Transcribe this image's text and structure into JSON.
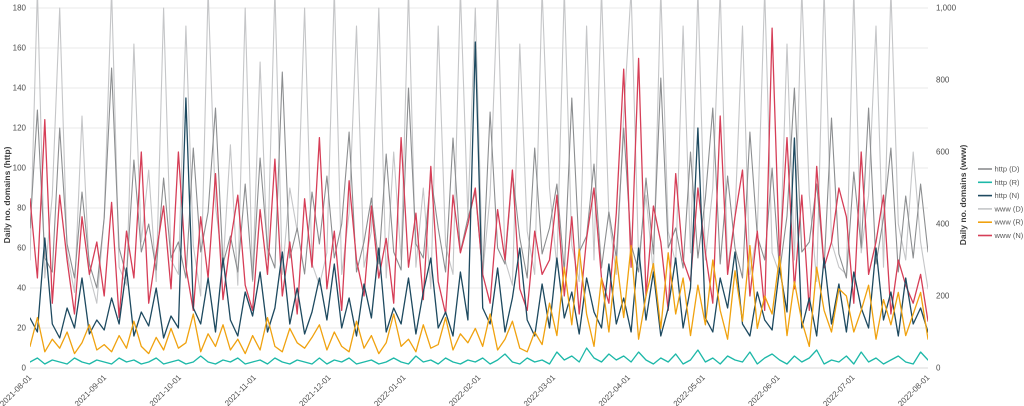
{
  "chart_data": {
    "type": "line",
    "title": "",
    "grid": true,
    "legend_position": "right",
    "x_tick_labels": [
      "2021-08-01",
      "2021-09-01",
      "2021-10-01",
      "2021-11-01",
      "2021-12-01",
      "2022-01-01",
      "2022-02-01",
      "2022-03-01",
      "2022-04-01",
      "2022-05-01",
      "2022-06-01",
      "2022-07-01",
      "2022-08-01"
    ],
    "left_axis": {
      "label": "Daily no. domains (http)",
      "range": [
        0,
        180
      ],
      "ticks": [
        0,
        20,
        40,
        60,
        80,
        100,
        120,
        140,
        160,
        180
      ]
    },
    "right_axis": {
      "label": "Daily no. domains (www)",
      "range": [
        0,
        1000
      ],
      "ticks": [
        {
          "v": 0,
          "label": "0"
        },
        {
          "v": 200,
          "label": "200"
        },
        {
          "v": 400,
          "label": "400"
        },
        {
          "v": 600,
          "label": "600"
        },
        {
          "v": 800,
          "label": "800"
        },
        {
          "v": 1000,
          "label": "1,000"
        }
      ]
    },
    "colors": {
      "gridline": "#e8e8e8",
      "axis_text": "#4d4d4d"
    },
    "series": [
      {
        "name": "http (D)",
        "axis": "left",
        "color": "#8c8e90",
        "values": [
          70,
          129,
          55,
          48,
          120,
          62,
          45,
          88,
          52,
          40,
          75,
          150,
          60,
          46,
          104,
          58,
          72,
          49,
          95,
          55,
          63,
          45,
          110,
          58,
          78,
          130,
          52,
          66,
          48,
          92,
          44,
          105,
          60,
          50,
          148,
          55,
          70,
          47,
          88,
          62,
          96,
          55,
          72,
          118,
          48,
          63,
          85,
          52,
          107,
          58,
          49,
          140,
          62,
          55,
          96,
          70,
          48,
          115,
          58,
          75,
          88,
          47,
          128,
          60,
          52,
          98,
          65,
          45,
          110,
          57,
          70,
          92,
          48,
          135,
          58,
          66,
          102,
          50,
          78,
          55,
          120,
          62,
          48,
          95,
          57,
          145,
          60,
          70,
          50,
          108,
          55,
          85,
          130,
          52,
          96,
          60,
          45,
          118,
          66,
          54,
          100,
          48,
          76,
          140,
          58,
          63,
          92,
          50,
          125,
          57,
          45,
          98,
          60,
          130,
          52,
          75,
          110,
          48,
          86,
          55,
          92,
          58
        ]
      },
      {
        "name": "http (R)",
        "axis": "left",
        "color": "#1db8a8",
        "values": [
          3,
          5,
          2,
          4,
          3,
          2,
          5,
          3,
          2,
          4,
          3,
          2,
          5,
          3,
          4,
          2,
          3,
          5,
          2,
          3,
          4,
          2,
          3,
          6,
          3,
          2,
          4,
          3,
          5,
          2,
          3,
          4,
          2,
          5,
          3,
          2,
          4,
          3,
          2,
          5,
          2,
          4,
          3,
          5,
          2,
          3,
          4,
          2,
          3,
          5,
          3,
          2,
          6,
          3,
          4,
          2,
          5,
          3,
          2,
          4,
          3,
          5,
          2,
          4,
          7,
          3,
          2,
          5,
          3,
          4,
          2,
          8,
          4,
          6,
          3,
          10,
          5,
          3,
          7,
          4,
          6,
          3,
          8,
          4,
          2,
          5,
          3,
          7,
          2,
          4,
          9,
          3,
          5,
          2,
          6,
          4,
          3,
          8,
          2,
          5,
          7,
          4,
          2,
          6,
          3,
          5,
          9,
          2,
          4,
          3,
          6,
          2,
          8,
          3,
          5,
          2,
          4,
          6,
          3,
          2,
          8,
          4
        ]
      },
      {
        "name": "http (N)",
        "axis": "left",
        "color": "#1e4a60",
        "values": [
          25,
          18,
          65,
          22,
          15,
          30,
          20,
          45,
          17,
          24,
          19,
          35,
          22,
          50,
          16,
          28,
          21,
          40,
          15,
          26,
          20,
          135,
          30,
          22,
          45,
          18,
          55,
          24,
          16,
          38,
          26,
          48,
          18,
          30,
          58,
          22,
          40,
          17,
          28,
          45,
          24,
          52,
          20,
          35,
          16,
          42,
          25,
          60,
          18,
          30,
          22,
          45,
          17,
          38,
          55,
          20,
          28,
          16,
          48,
          24,
          163,
          30,
          22,
          50,
          18,
          35,
          60,
          24,
          16,
          42,
          20,
          55,
          25,
          38,
          17,
          45,
          28,
          20,
          52,
          22,
          35,
          18,
          60,
          24,
          48,
          16,
          30,
          55,
          20,
          40,
          120,
          25,
          18,
          45,
          30,
          58,
          22,
          16,
          38,
          24,
          19,
          50,
          28,
          115,
          20,
          35,
          16,
          55,
          22,
          42,
          18,
          48,
          30,
          20,
          60,
          24,
          38,
          16,
          45,
          22,
          30,
          18
        ]
      },
      {
        "name": "www (D)",
        "axis": "right",
        "color": "#c5c6c8",
        "values": [
          300,
          1050,
          250,
          480,
          1000,
          320,
          210,
          700,
          260,
          180,
          420,
          1050,
          280,
          230,
          900,
          350,
          550,
          240,
          1000,
          300,
          260,
          950,
          340,
          200,
          1050,
          450,
          280,
          620,
          230,
          1000,
          240,
          850,
          300,
          1050,
          260,
          500,
          380,
          1000,
          290,
          230,
          320,
          1050,
          260,
          430,
          950,
          280,
          380,
          1000,
          250,
          600,
          300,
          1050,
          280,
          500,
          220,
          950,
          340,
          260,
          1050,
          420,
          1000,
          260,
          480,
          1050,
          300,
          230,
          900,
          380,
          260,
          1050,
          500,
          280,
          1050,
          340,
          240,
          950,
          300,
          1050,
          420,
          260,
          700,
          1050,
          300,
          480,
          260,
          1050,
          380,
          290,
          950,
          320,
          1050,
          300,
          500,
          1050,
          280,
          420,
          950,
          260,
          380,
          1050,
          320,
          260,
          900,
          300,
          1050,
          480,
          240,
          1050,
          350,
          280,
          260,
          1050,
          320,
          480,
          950,
          280,
          1050,
          400,
          300,
          600,
          350,
          220
        ]
      },
      {
        "name": "www (R)",
        "axis": "right",
        "color": "#f0a20f",
        "values": [
          60,
          140,
          45,
          80,
          55,
          100,
          40,
          70,
          120,
          50,
          65,
          45,
          90,
          55,
          130,
          60,
          40,
          85,
          50,
          110,
          55,
          70,
          150,
          45,
          95,
          60,
          120,
          50,
          80,
          40,
          90,
          50,
          140,
          60,
          45,
          110,
          70,
          55,
          85,
          120,
          50,
          100,
          60,
          45,
          130,
          55,
          90,
          40,
          70,
          150,
          60,
          80,
          45,
          120,
          55,
          65,
          140,
          50,
          95,
          70,
          110,
          60,
          150,
          50,
          80,
          130,
          55,
          45,
          100,
          65,
          180,
          90,
          280,
          120,
          330,
          150,
          60,
          250,
          100,
          310,
          140,
          340,
          80,
          200,
          290,
          110,
          320,
          150,
          250,
          90,
          230,
          120,
          300,
          160,
          80,
          270,
          130,
          340,
          110,
          200,
          150,
          310,
          90,
          240,
          130,
          60,
          280,
          160,
          100,
          220,
          200,
          100,
          160,
          230,
          80,
          190,
          120,
          210,
          90,
          150,
          210,
          80
        ]
      },
      {
        "name": "www (N)",
        "axis": "right",
        "color": "#d63e57",
        "values": [
          470,
          250,
          690,
          180,
          480,
          300,
          150,
          420,
          260,
          350,
          200,
          460,
          140,
          380,
          250,
          600,
          180,
          320,
          450,
          220,
          600,
          280,
          160,
          420,
          250,
          540,
          190,
          350,
          480,
          230,
          160,
          440,
          260,
          580,
          200,
          350,
          150,
          470,
          280,
          640,
          220,
          380,
          160,
          520,
          300,
          200,
          450,
          250,
          360,
          180,
          640,
          280,
          430,
          190,
          560,
          240,
          150,
          480,
          320,
          400,
          500,
          260,
          180,
          440,
          300,
          550,
          220,
          160,
          380,
          260,
          300,
          480,
          200,
          420,
          150,
          360,
          500,
          250,
          180,
          430,
          830,
          280,
          860,
          200,
          450,
          350,
          160,
          540,
          300,
          240,
          500,
          320,
          180,
          700,
          260,
          420,
          550,
          200,
          380,
          160,
          944,
          300,
          640,
          220,
          480,
          160,
          560,
          280,
          350,
          500,
          420,
          180,
          600,
          260,
          350,
          480,
          150,
          300,
          230,
          180,
          260,
          130
        ]
      }
    ]
  }
}
